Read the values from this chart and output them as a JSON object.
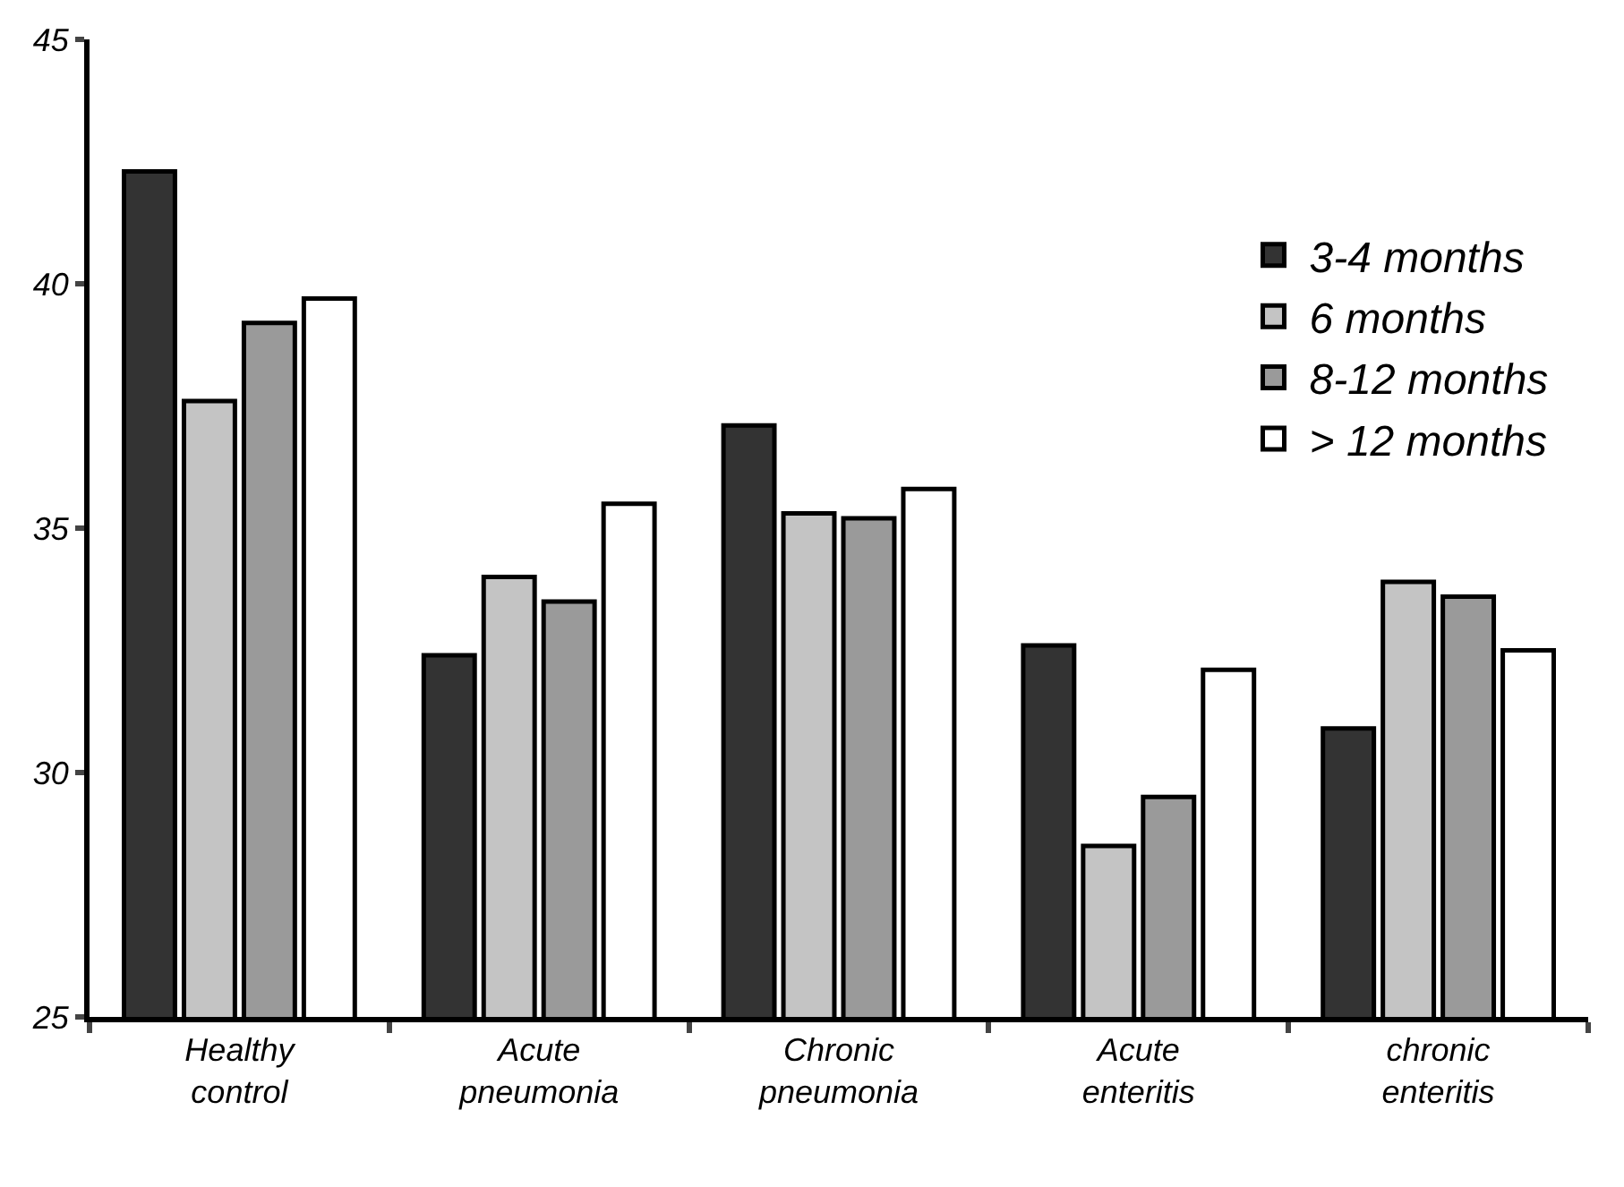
{
  "chart_data": {
    "type": "bar",
    "categories": [
      "Healthy\ncontrol",
      "Acute\npneumonia",
      "Chronic\npneumonia",
      "Acute\nenteritis",
      "chronic\nenteritis"
    ],
    "series": [
      {
        "name": "3-4 months",
        "color": "#333333",
        "values": [
          42.3,
          32.4,
          37.1,
          32.6,
          30.9
        ]
      },
      {
        "name": "6 months",
        "color": "#c4c4c4",
        "values": [
          37.6,
          34.0,
          35.3,
          28.5,
          33.9
        ]
      },
      {
        "name": "8-12 months",
        "color": "#9a9a9a",
        "values": [
          39.2,
          33.5,
          35.2,
          29.5,
          33.6
        ]
      },
      {
        "name": "> 12 months",
        "color": "#ffffff",
        "values": [
          39.7,
          35.5,
          35.8,
          32.1,
          32.5
        ]
      }
    ],
    "ylim": [
      25,
      45
    ],
    "yticks": [
      25,
      30,
      35,
      40,
      45
    ],
    "grid": false,
    "legend": "top right"
  }
}
